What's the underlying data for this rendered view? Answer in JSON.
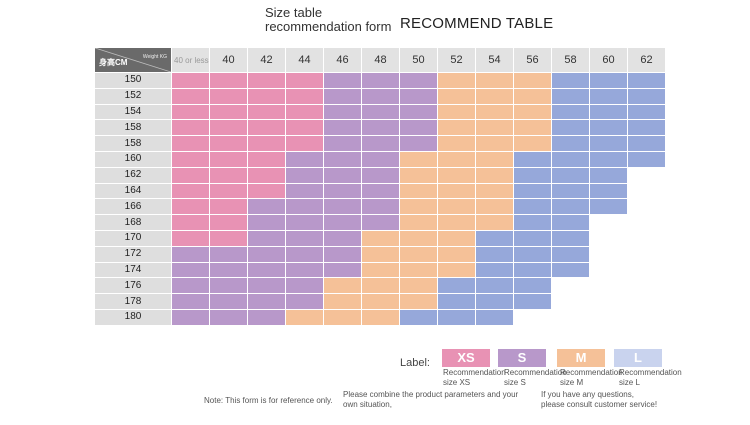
{
  "title": {
    "line1": "Size table",
    "line2": "recommendation form",
    "main": "RECOMMEND TABLE"
  },
  "table": {
    "corner_weight_label": "Weight KG",
    "corner_height_label": "身高CM",
    "weights": [
      "40 or less",
      "40",
      "42",
      "44",
      "46",
      "48",
      "50",
      "52",
      "54",
      "56",
      "58",
      "60",
      "62"
    ],
    "rows": [
      {
        "height": "150",
        "cells": [
          "xs",
          "xs",
          "xs",
          "xs",
          "s",
          "s",
          "s",
          "m",
          "m",
          "m",
          "l",
          "l",
          "l"
        ]
      },
      {
        "height": "152",
        "cells": [
          "xs",
          "xs",
          "xs",
          "xs",
          "s",
          "s",
          "s",
          "m",
          "m",
          "m",
          "l",
          "l",
          "l"
        ]
      },
      {
        "height": "154",
        "cells": [
          "xs",
          "xs",
          "xs",
          "xs",
          "s",
          "s",
          "s",
          "m",
          "m",
          "m",
          "l",
          "l",
          "l"
        ]
      },
      {
        "height": "158",
        "cells": [
          "xs",
          "xs",
          "xs",
          "xs",
          "s",
          "s",
          "s",
          "m",
          "m",
          "m",
          "l",
          "l",
          "l"
        ]
      },
      {
        "height": "158",
        "cells": [
          "xs",
          "xs",
          "xs",
          "xs",
          "s",
          "s",
          "s",
          "m",
          "m",
          "m",
          "l",
          "l",
          "l"
        ]
      },
      {
        "height": "160",
        "cells": [
          "xs",
          "xs",
          "xs",
          "s",
          "s",
          "s",
          "m",
          "m",
          "m",
          "l",
          "l",
          "l",
          "l"
        ]
      },
      {
        "height": "162",
        "cells": [
          "xs",
          "xs",
          "xs",
          "s",
          "s",
          "s",
          "m",
          "m",
          "m",
          "l",
          "l",
          "l",
          ""
        ]
      },
      {
        "height": "164",
        "cells": [
          "xs",
          "xs",
          "xs",
          "s",
          "s",
          "s",
          "m",
          "m",
          "m",
          "l",
          "l",
          "l",
          ""
        ]
      },
      {
        "height": "166",
        "cells": [
          "xs",
          "xs",
          "s",
          "s",
          "s",
          "s",
          "m",
          "m",
          "m",
          "l",
          "l",
          "l",
          ""
        ]
      },
      {
        "height": "168",
        "cells": [
          "xs",
          "xs",
          "s",
          "s",
          "s",
          "s",
          "m",
          "m",
          "m",
          "l",
          "l",
          "",
          ""
        ]
      },
      {
        "height": "170",
        "cells": [
          "xs",
          "xs",
          "s",
          "s",
          "s",
          "m",
          "m",
          "m",
          "l",
          "l",
          "l",
          "",
          ""
        ]
      },
      {
        "height": "172",
        "cells": [
          "s",
          "s",
          "s",
          "s",
          "s",
          "m",
          "m",
          "m",
          "l",
          "l",
          "l",
          "",
          ""
        ]
      },
      {
        "height": "174",
        "cells": [
          "s",
          "s",
          "s",
          "s",
          "s",
          "m",
          "m",
          "m",
          "l",
          "l",
          "l",
          "",
          ""
        ]
      },
      {
        "height": "176",
        "cells": [
          "s",
          "s",
          "s",
          "s",
          "m",
          "m",
          "m",
          "l",
          "l",
          "l",
          "",
          "",
          ""
        ]
      },
      {
        "height": "178",
        "cells": [
          "s",
          "s",
          "s",
          "s",
          "m",
          "m",
          "m",
          "l",
          "l",
          "l",
          "",
          "",
          ""
        ]
      },
      {
        "height": "180",
        "cells": [
          "s",
          "s",
          "s",
          "m",
          "m",
          "m",
          "l",
          "l",
          "l",
          "",
          "",
          "",
          ""
        ]
      }
    ]
  },
  "legend": {
    "label": "Label:",
    "items": [
      {
        "code": "XS",
        "desc1": "Recommendation",
        "desc2": "size XS",
        "color": "#e892b4"
      },
      {
        "code": "S",
        "desc1": "Recommendation",
        "desc2": "size S",
        "color": "#b898ca"
      },
      {
        "code": "M",
        "desc1": "Recommendation",
        "desc2": "size M",
        "color": "#f5c198"
      },
      {
        "code": "L",
        "desc1": "Recommendation",
        "desc2": "size L",
        "color": "#c9d3ee"
      }
    ]
  },
  "notes": {
    "note1": "Note: This form is for reference only.",
    "note2_line1": "Please combine the product parameters and your",
    "note2_line2": "own situation,",
    "note3_line1": "If you have any questions,",
    "note3_line2": "please consult customer service!"
  }
}
